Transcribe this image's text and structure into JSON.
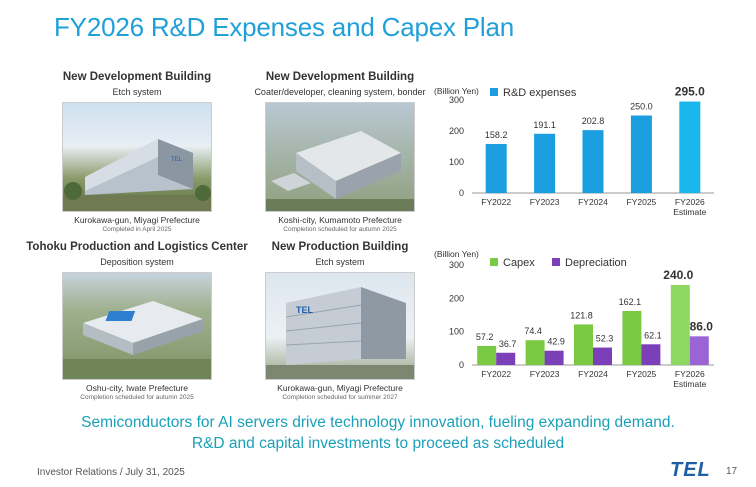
{
  "title": "FY2026 R&D Expenses and Capex Plan",
  "buildings": [
    {
      "name": "New Development Building",
      "system": "Etch system",
      "location": "Kurokawa-gun, Miyagi Prefecture",
      "note": "Completed in April 2025"
    },
    {
      "name": "New Development Building",
      "system": "Coater/developer, cleaning system, bonder",
      "location": "Koshi-city, Kumamoto Prefecture",
      "note": "Completion scheduled for autumn 2025"
    },
    {
      "name": "Tohoku Production and Logistics Center",
      "system": "Deposition system",
      "location": "Oshu-city, Iwate Prefecture",
      "note": "Completion scheduled for autumn 2025"
    },
    {
      "name": "New Production Building",
      "system": "Etch system",
      "location": "Kurokawa-gun, Miyagi Prefecture",
      "note": "Completion scheduled for summer 2027"
    }
  ],
  "chart_data": [
    {
      "type": "bar",
      "title": "",
      "unit": "(Billion Yen)",
      "categories": [
        "FY2022",
        "FY2023",
        "FY2024",
        "FY2025",
        "FY2026\nEstimate"
      ],
      "series": [
        {
          "name": "R&D expenses",
          "values": [
            158.2,
            191.1,
            202.8,
            250.0,
            295.0
          ],
          "labels": [
            "158.2",
            "191.1",
            "202.8",
            "250.0",
            "295.0"
          ],
          "color": "#1a9ee0"
        }
      ],
      "yticks": [
        0,
        100,
        200,
        300
      ],
      "ylim": [
        0,
        300
      ]
    },
    {
      "type": "bar",
      "title": "",
      "unit": "(Billion Yen)",
      "categories": [
        "FY2022",
        "FY2023",
        "FY2024",
        "FY2025",
        "FY2026\nEstimate"
      ],
      "series": [
        {
          "name": "Capex",
          "values": [
            57.2,
            74.4,
            121.8,
            162.1,
            240.0
          ],
          "labels": [
            "57.2",
            "74.4",
            "121.8",
            "162.1",
            "240.0"
          ],
          "color": "#7ac943"
        },
        {
          "name": "Depreciation",
          "values": [
            36.7,
            42.9,
            52.3,
            62.1,
            86.0
          ],
          "labels": [
            "36.7",
            "42.9",
            "52.3",
            "62.1",
            "86.0"
          ],
          "color": "#7b3fb8"
        }
      ],
      "yticks": [
        0,
        100,
        200,
        300
      ],
      "ylim": [
        0,
        300
      ]
    }
  ],
  "tagline": [
    "Semiconductors for AI servers drive technology innovation, fueling expanding demand.",
    "R&D and capital investments to proceed as scheduled"
  ],
  "footer": "Investor Relations / July 31, 2025",
  "logo": "TEL",
  "page_number": "17"
}
